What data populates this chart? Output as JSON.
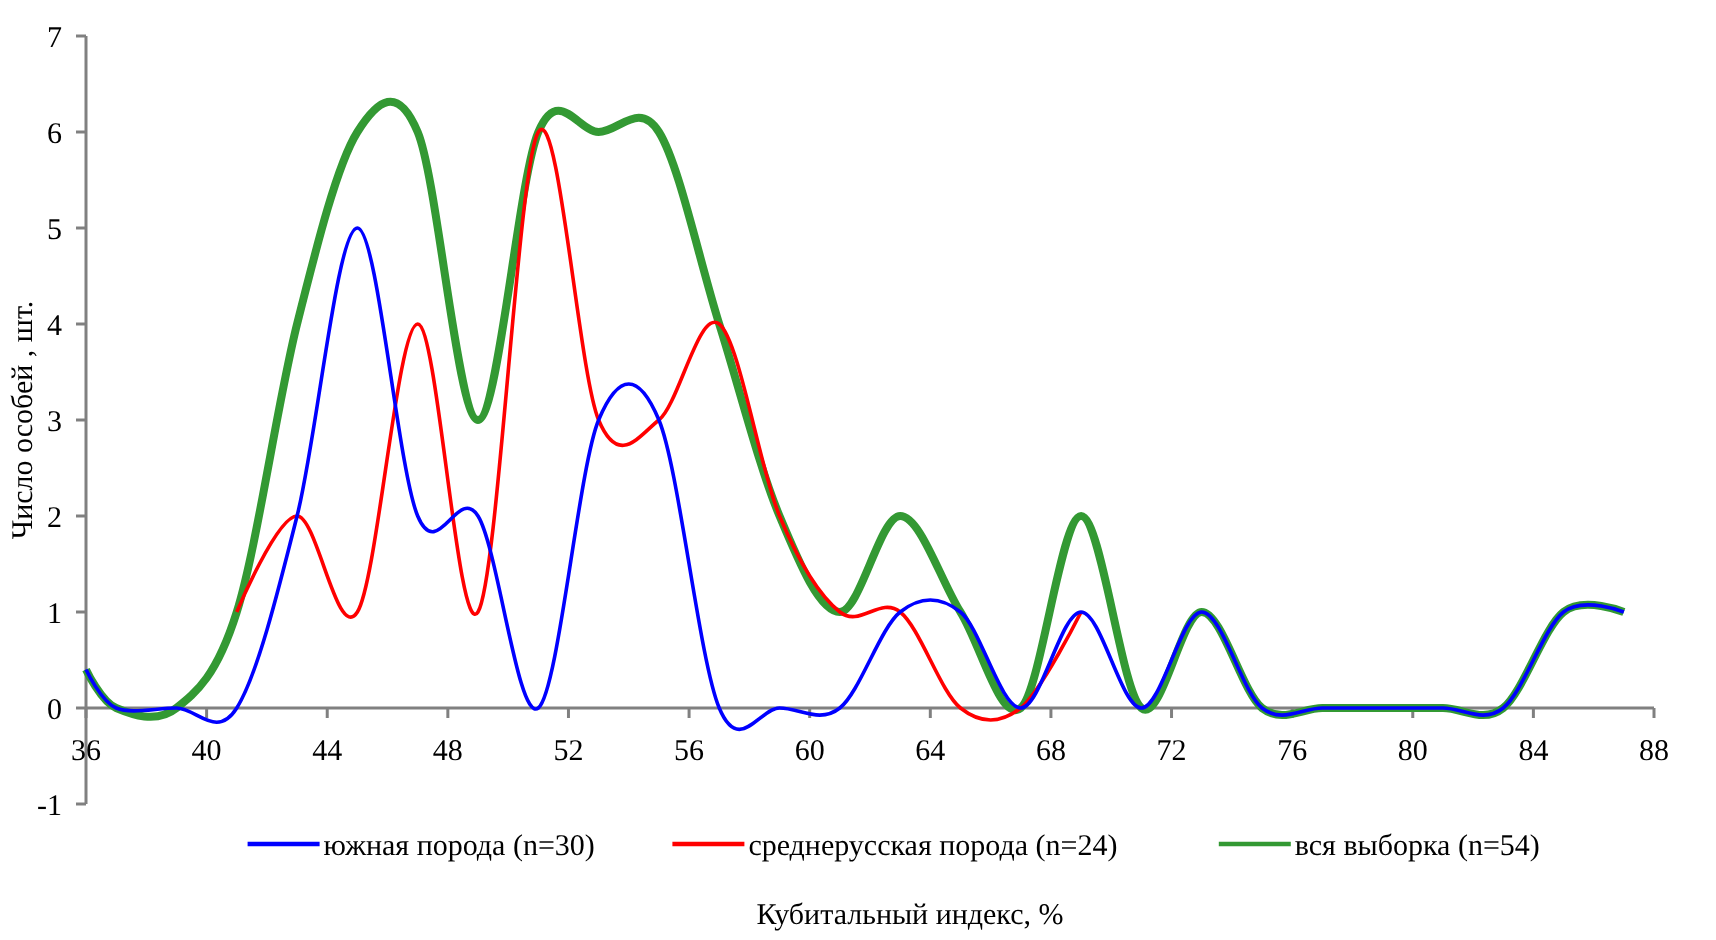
{
  "chart_data": {
    "type": "line",
    "xlabel": "Кубитальный индекс, %",
    "ylabel": "Число особей ,  шт.",
    "xlim": [
      36,
      88
    ],
    "xticks": [
      36,
      40,
      44,
      48,
      52,
      56,
      60,
      64,
      68,
      72,
      76,
      80,
      84,
      88
    ],
    "ylim": [
      -1,
      7
    ],
    "yticks": [
      -1,
      0,
      1,
      2,
      3,
      4,
      5,
      6,
      7
    ],
    "grid": false,
    "legend": "bottom",
    "line_style": "solid",
    "marker": "none",
    "series": [
      {
        "name": "южная порода (n=30)",
        "color": "#0000ff",
        "x": [
          36,
          37,
          39,
          41,
          43,
          45,
          47,
          49,
          51,
          53,
          55,
          57,
          59,
          61,
          63,
          65,
          67,
          69,
          71,
          73,
          75,
          77,
          79,
          81,
          83,
          85,
          87
        ],
        "values": [
          0.4,
          0,
          0,
          0,
          2,
          5,
          2,
          2,
          0,
          3,
          3,
          0,
          0,
          0,
          1,
          1,
          0,
          1,
          0,
          1,
          0,
          0,
          0,
          0,
          0,
          1,
          1
        ]
      },
      {
        "name": "среднерусская порода (n=24)",
        "color": "#ff0000",
        "x": [
          41,
          43,
          45,
          47,
          49,
          51,
          53,
          55,
          57,
          59,
          61,
          63,
          65,
          67,
          69
        ],
        "values": [
          1,
          2,
          1,
          4,
          1,
          6,
          3,
          3,
          4,
          2,
          1,
          1,
          0,
          0,
          1
        ]
      },
      {
        "name": "вся выборка (n=54)",
        "color": "#339933",
        "x": [
          36,
          37,
          39,
          41,
          43,
          45,
          47,
          49,
          51,
          53,
          55,
          57,
          59,
          61,
          63,
          65,
          67,
          69,
          71,
          73,
          75,
          77,
          79,
          81,
          83,
          85,
          87
        ],
        "values": [
          0.4,
          0,
          0,
          1,
          4,
          6,
          6,
          3,
          6,
          6,
          6,
          4,
          2,
          1,
          2,
          1,
          0,
          2,
          0,
          1,
          0,
          0,
          0,
          0,
          0,
          1,
          1
        ]
      }
    ]
  }
}
